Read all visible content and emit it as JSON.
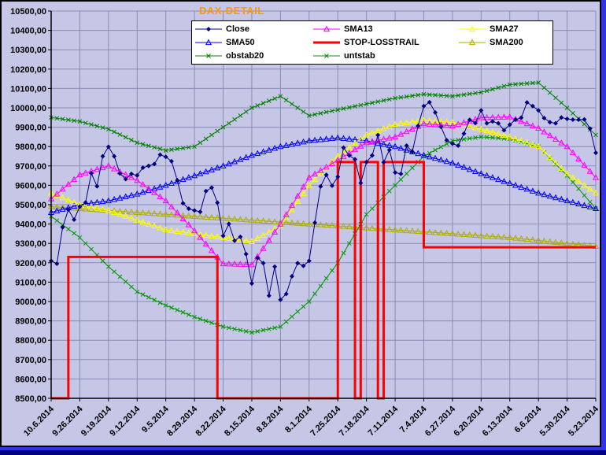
{
  "title": "DAX-DETAIL",
  "colors": {
    "surround": "#3333E6",
    "bottom_bar": "#000080",
    "chart_background": "#C6C6E6",
    "grid": "#8C8CB4",
    "axis": "#000000",
    "legend_background": "#FFFFFF",
    "title_text": "#FF9900"
  },
  "chart_data": {
    "type": "line",
    "title": "DAX-DETAIL",
    "ylim": [
      8500,
      10500
    ],
    "y_tick_step": 100,
    "grid": true,
    "grid_color": "#8C8CB4",
    "legend_position": "top-center",
    "n_points": 96,
    "points_per_label": 5,
    "y_ticks": [
      "10500,00",
      "10400,00",
      "10300,00",
      "10200,00",
      "10100,00",
      "10000,00",
      "9900,00",
      "9800,00",
      "9700,00",
      "9600,00",
      "9500,00",
      "9400,00",
      "9300,00",
      "9200,00",
      "9100,00",
      "9000,00",
      "8900,00",
      "8800,00",
      "8700,00",
      "8600,00",
      "8500,00"
    ],
    "x_tick_labels": [
      "10.6.2014",
      "9.26.2014",
      "9.19.2014",
      "9.12.2014",
      "9.5.2014",
      "8.29.2014",
      "8.22.2014",
      "8.15.2014",
      "8.8.2014",
      "8.1.2014",
      "7.25.2014",
      "7.18.2014",
      "7.11.2014",
      "7.4.2014",
      "6.27.2014",
      "6.20.2014",
      "6.13.2014",
      "6.6.2014",
      "5.30.2014",
      "5.23.2014"
    ],
    "x_axis_note": "time axis reversed: newest date at left, oldest at right; 96 daily points, one label per 5 points",
    "series": [
      {
        "name": "Close",
        "color": "#000080",
        "marker": "diamond",
        "width": 1,
        "resolution": "daily",
        "values": [
          9210,
          9195,
          9383,
          9474,
          9423,
          9490,
          9511,
          9662,
          9595,
          9750,
          9799,
          9750,
          9661,
          9632,
          9659,
          9651,
          9691,
          9700,
          9710,
          9758,
          9747,
          9724,
          9626,
          9507,
          9479,
          9470,
          9463,
          9570,
          9588,
          9510,
          9339,
          9401,
          9314,
          9334,
          9245,
          9093,
          9225,
          9198,
          9030,
          9180,
          9009,
          9039,
          9130,
          9198,
          9184,
          9210,
          9407,
          9594,
          9654,
          9598,
          9644,
          9794,
          9754,
          9734,
          9612,
          9720,
          9754,
          9859,
          9719,
          9783,
          9666,
          9659,
          9805,
          9773,
          9906,
          10009,
          10029,
          9976,
          9902,
          9833,
          9815,
          9805,
          9867,
          9938,
          9921,
          9987,
          9920,
          9930,
          9920,
          9884,
          9913,
          9939,
          9949,
          10028,
          10009,
          9987,
          9947,
          9926,
          9920,
          9950,
          9943,
          9939,
          9939,
          9940,
          9893,
          9768
        ]
      },
      {
        "name": "SMA13",
        "color": "#FF00FF",
        "marker": "triangle",
        "width": 1,
        "resolution": "weekly",
        "values": [
          9530,
          9655,
          9700,
          9625,
          9520,
          9365,
          9195,
          9190,
          9400,
          9640,
          9730,
          9820,
          9850,
          9918,
          9907,
          9949,
          9953,
          9895,
          9800,
          9640
        ]
      },
      {
        "name": "SMA27",
        "color": "#FFFF00",
        "marker": "triangle",
        "width": 1,
        "resolution": "weekly",
        "values": [
          9560,
          9500,
          9470,
          9420,
          9370,
          9350,
          9330,
          9310,
          9390,
          9600,
          9750,
          9860,
          9915,
          9935,
          9925,
          9890,
          9850,
          9800,
          9660,
          9560
        ]
      },
      {
        "name": "SMA50",
        "color": "#0000FF",
        "marker": "triangle",
        "width": 1,
        "resolution": "weekly",
        "values": [
          9460,
          9500,
          9520,
          9555,
          9600,
          9650,
          9700,
          9755,
          9800,
          9830,
          9845,
          9830,
          9800,
          9755,
          9715,
          9660,
          9610,
          9560,
          9520,
          9480
        ]
      },
      {
        "name": "STOP-LOSSTRAIL",
        "color": "#FF0000",
        "marker": "none",
        "width": 3,
        "resolution": "segments",
        "step": true,
        "segments": [
          [
            0,
            2,
            8500
          ],
          [
            3,
            28,
            9230
          ],
          [
            29,
            49,
            8500
          ],
          [
            50,
            52,
            9720
          ],
          [
            53,
            53,
            8500
          ],
          [
            54,
            56,
            9720
          ],
          [
            57,
            57,
            8500
          ],
          [
            58,
            64,
            9720
          ],
          [
            65,
            95,
            9280
          ]
        ]
      },
      {
        "name": "SMA200",
        "color": "#ADAD00",
        "marker": "triangle",
        "width": 1,
        "resolution": "weekly",
        "values": [
          9490,
          9480,
          9470,
          9460,
          9450,
          9440,
          9430,
          9420,
          9410,
          9400,
          9390,
          9380,
          9370,
          9360,
          9350,
          9340,
          9330,
          9315,
          9300,
          9285
        ]
      },
      {
        "name": "obstab20",
        "color": "#008000",
        "marker": "x",
        "width": 1,
        "resolution": "weekly",
        "values": [
          9950,
          9930,
          9890,
          9820,
          9780,
          9800,
          9900,
          10000,
          10060,
          9960,
          9990,
          10020,
          10050,
          10070,
          10060,
          10080,
          10120,
          10130,
          10000,
          9860
        ]
      },
      {
        "name": "untstab",
        "color": "#009900",
        "marker": "x",
        "width": 1,
        "resolution": "weekly",
        "values": [
          9440,
          9330,
          9180,
          9050,
          8980,
          8920,
          8870,
          8840,
          8870,
          9000,
          9200,
          9450,
          9600,
          9750,
          9830,
          9850,
          9840,
          9800,
          9650,
          9480
        ]
      }
    ],
    "draw_order": [
      "SMA200",
      "obstab20",
      "untstab",
      "SMA50",
      "SMA27",
      "SMA13",
      "STOP-LOSSTRAIL",
      "Close"
    ],
    "legend_order": [
      [
        "Close",
        "SMA50",
        "obstab20"
      ],
      [
        "SMA13",
        "STOP-LOSSTRAIL",
        "untstab"
      ],
      [
        "SMA27",
        "SMA200"
      ]
    ]
  }
}
